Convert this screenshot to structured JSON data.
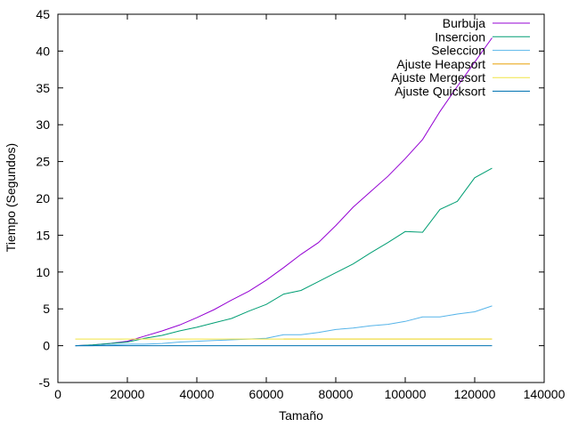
{
  "chart_data": {
    "type": "line",
    "title": "",
    "xlabel": "Tamaño",
    "ylabel": "Tiempo (Segundos)",
    "xlim": [
      0,
      140000
    ],
    "ylim": [
      -5,
      45
    ],
    "xticks": [
      0,
      20000,
      40000,
      60000,
      80000,
      100000,
      120000,
      140000
    ],
    "yticks": [
      -5,
      0,
      5,
      10,
      15,
      20,
      25,
      30,
      35,
      40,
      45
    ],
    "grid": false,
    "legend_position": "top-right",
    "series": [
      {
        "name": "Burbuja",
        "color": "#9400d3",
        "x": [
          5000,
          10000,
          15000,
          20000,
          25000,
          30000,
          35000,
          40000,
          45000,
          50000,
          55000,
          60000,
          65000,
          70000,
          75000,
          80000,
          85000,
          90000,
          95000,
          100000,
          105000,
          110000,
          115000,
          120000,
          125000
        ],
        "y": [
          0.0,
          0.1,
          0.3,
          0.6,
          1.3,
          2.0,
          2.8,
          3.8,
          4.9,
          6.2,
          7.4,
          8.9,
          10.6,
          12.4,
          14.0,
          16.3,
          18.8,
          20.9,
          23.0,
          25.4,
          28.0,
          31.8,
          35.2,
          38.5,
          41.8
        ]
      },
      {
        "name": "Insercion",
        "color": "#009e73",
        "x": [
          5000,
          10000,
          15000,
          20000,
          25000,
          30000,
          35000,
          40000,
          45000,
          50000,
          55000,
          60000,
          65000,
          70000,
          75000,
          80000,
          85000,
          90000,
          95000,
          100000,
          105000,
          110000,
          115000,
          120000,
          125000
        ],
        "y": [
          0.0,
          0.1,
          0.3,
          0.5,
          1.0,
          1.4,
          2.0,
          2.5,
          3.1,
          3.7,
          4.7,
          5.6,
          7.0,
          7.5,
          8.7,
          9.9,
          11.1,
          12.6,
          14.0,
          15.5,
          15.4,
          18.5,
          19.6,
          22.8,
          24.1
        ]
      },
      {
        "name": "Seleccion",
        "color": "#56b4e9",
        "x": [
          5000,
          10000,
          15000,
          20000,
          25000,
          30000,
          35000,
          40000,
          45000,
          50000,
          55000,
          60000,
          65000,
          70000,
          75000,
          80000,
          85000,
          90000,
          95000,
          100000,
          105000,
          110000,
          115000,
          120000,
          125000
        ],
        "y": [
          0.0,
          0.0,
          0.1,
          0.2,
          0.2,
          0.3,
          0.5,
          0.6,
          0.7,
          0.8,
          0.9,
          1.0,
          1.5,
          1.5,
          1.8,
          2.2,
          2.4,
          2.7,
          2.9,
          3.3,
          3.9,
          3.9,
          4.3,
          4.6,
          5.4
        ]
      },
      {
        "name": "Ajuste Heapsort",
        "color": "#e69f00",
        "x": [
          65000,
          125000
        ],
        "y": [
          0.9,
          0.9
        ]
      },
      {
        "name": "Ajuste Mergesort",
        "color": "#f0e442",
        "x": [
          5000,
          125000
        ],
        "y": [
          0.9,
          0.9
        ]
      },
      {
        "name": "Ajuste Quicksort",
        "color": "#0072b2",
        "x": [
          5000,
          125000
        ],
        "y": [
          0.0,
          0.0
        ]
      }
    ]
  }
}
